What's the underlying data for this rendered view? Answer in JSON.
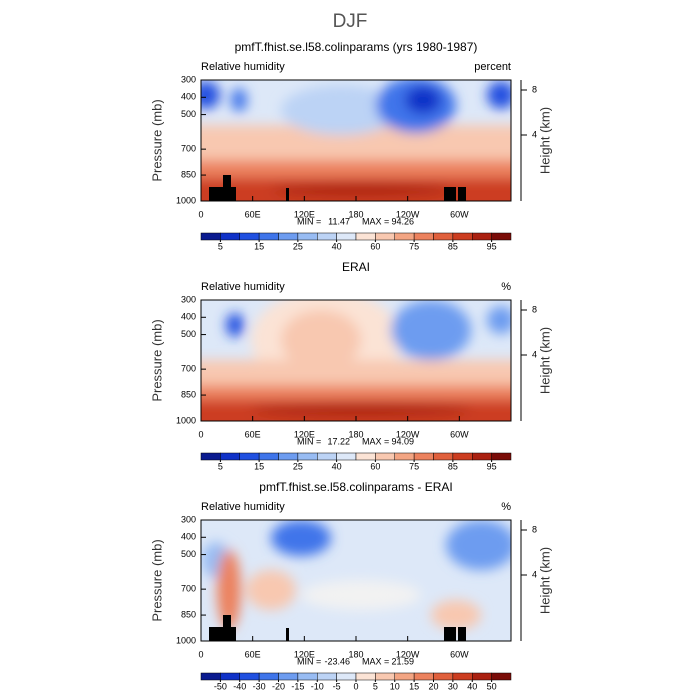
{
  "title": "DJF",
  "chart_data": [
    {
      "type": "contour",
      "title": "pmfT.fhist.se.l58.colinparams (yrs 1980-1987)",
      "left_label": "Relative humidity",
      "right_label": "percent",
      "ylabel": "Pressure (mb)",
      "y2label": "Height (km)",
      "xlim": [
        0,
        360
      ],
      "xticks": [
        0,
        {
          "value": 60,
          "label": "60E"
        },
        {
          "value": 120,
          "label": "120E"
        },
        180,
        {
          "value": 240,
          "label": "120W"
        },
        {
          "value": 300,
          "label": "60W"
        }
      ],
      "ylim": [
        1000,
        300
      ],
      "yticks": [
        300,
        400,
        500,
        700,
        850,
        1000
      ],
      "y2lim": [
        -1.87,
        8.89
      ],
      "y2ticks": [
        4,
        8
      ],
      "min_label": "MIN =",
      "min": 11.47,
      "max_label": "MAX =",
      "max": 94.26,
      "colorbar": {
        "levels": [
          5,
          10,
          15,
          20,
          25,
          30,
          40,
          50,
          60,
          70,
          75,
          80,
          85,
          90,
          95
        ],
        "ticks": [
          5,
          15,
          25,
          40,
          60,
          75,
          85,
          95
        ],
        "colors": [
          "#0a1a8f",
          "#1032c8",
          "#2050e0",
          "#3f75ea",
          "#6d9cf0",
          "#98bcf3",
          "#bcd3f5",
          "#dde8f8",
          "#fbe3d5",
          "#f8c8b0",
          "#f3a583",
          "#ec825e",
          "#e0603c",
          "#cc3d20",
          "#aa2010",
          "#7a0c08"
        ]
      }
    },
    {
      "type": "contour",
      "title": "ERAI",
      "left_label": "Relative humidity",
      "right_label": "%",
      "ylabel": "Pressure (mb)",
      "y2label": "Height (km)",
      "xlim": [
        0,
        360
      ],
      "xticks": [
        0,
        {
          "value": 60,
          "label": "60E"
        },
        {
          "value": 120,
          "label": "120E"
        },
        180,
        {
          "value": 240,
          "label": "120W"
        },
        {
          "value": 300,
          "label": "60W"
        }
      ],
      "ylim": [
        1000,
        300
      ],
      "yticks": [
        300,
        400,
        500,
        700,
        850,
        1000
      ],
      "y2lim": [
        -1.87,
        8.89
      ],
      "y2ticks": [
        4,
        8
      ],
      "min_label": "MIN =",
      "min": 17.22,
      "max_label": "MAX =",
      "max": 94.09,
      "colorbar": {
        "levels": [
          5,
          10,
          15,
          20,
          25,
          30,
          40,
          50,
          60,
          70,
          75,
          80,
          85,
          90,
          95
        ],
        "ticks": [
          5,
          15,
          25,
          40,
          60,
          75,
          85,
          95
        ],
        "colors": [
          "#0a1a8f",
          "#1032c8",
          "#2050e0",
          "#3f75ea",
          "#6d9cf0",
          "#98bcf3",
          "#bcd3f5",
          "#dde8f8",
          "#fbe3d5",
          "#f8c8b0",
          "#f3a583",
          "#ec825e",
          "#e0603c",
          "#cc3d20",
          "#aa2010",
          "#7a0c08"
        ]
      }
    },
    {
      "type": "contour",
      "title": "pmfT.fhist.se.l58.colinparams - ERAI",
      "left_label": "Relative humidity",
      "right_label": "%",
      "ylabel": "Pressure (mb)",
      "y2label": "Height (km)",
      "xlim": [
        0,
        360
      ],
      "xticks": [
        0,
        {
          "value": 60,
          "label": "60E"
        },
        {
          "value": 120,
          "label": "120E"
        },
        180,
        {
          "value": 240,
          "label": "120W"
        },
        {
          "value": 300,
          "label": "60W"
        }
      ],
      "ylim": [
        1000,
        300
      ],
      "yticks": [
        300,
        400,
        500,
        700,
        850,
        1000
      ],
      "y2lim": [
        -1.87,
        8.89
      ],
      "y2ticks": [
        4,
        8
      ],
      "min_label": "MIN =",
      "min": -23.46,
      "max_label": "MAX =",
      "max": 21.59,
      "colorbar": {
        "levels": [
          -50,
          -40,
          -30,
          -20,
          -15,
          -10,
          -5,
          0,
          5,
          10,
          15,
          20,
          30,
          40,
          50
        ],
        "ticks": [
          -50,
          -40,
          -30,
          -20,
          -15,
          -10,
          -5,
          0,
          5,
          10,
          15,
          20,
          30,
          40,
          50
        ],
        "colors": [
          "#0a1a8f",
          "#1032c8",
          "#2050e0",
          "#3f75ea",
          "#6d9cf0",
          "#98bcf3",
          "#bcd3f5",
          "#dde8f8",
          "#fbe3d5",
          "#f8c8b0",
          "#f3a583",
          "#ec825e",
          "#e0603c",
          "#cc3d20",
          "#aa2010",
          "#7a0c08"
        ]
      }
    }
  ]
}
